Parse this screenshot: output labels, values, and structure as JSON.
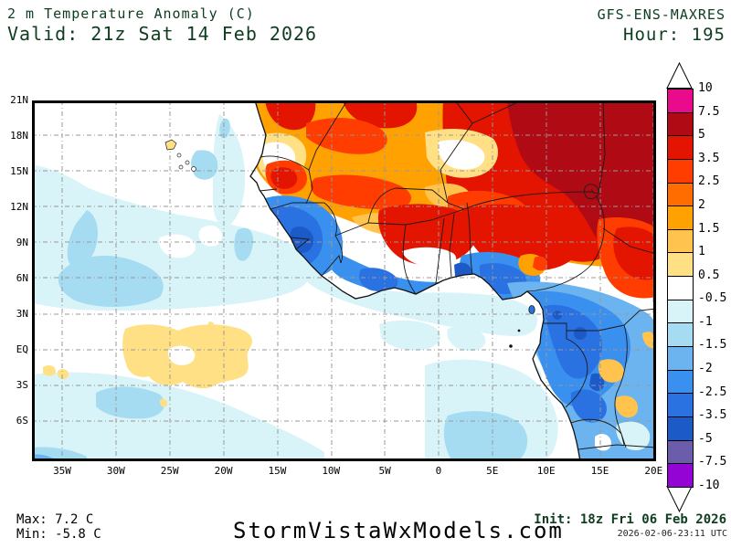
{
  "header": {
    "title": "2 m Temperature Anomaly (C)",
    "valid": "Valid: 21z Sat 14 Feb 2026",
    "model": "GFS-ENS-MAXRES",
    "hour": "Hour: 195"
  },
  "footer": {
    "max": "Max: 7.2 C",
    "min": "Min: -5.8 C",
    "site": "StormVistaWxModels.com",
    "init": "Init: 18z Fri 06 Feb 2026",
    "generated": "2026-02-06-23:11 UTC"
  },
  "map": {
    "lat_labels": [
      "21N",
      "18N",
      "15N",
      "12N",
      "9N",
      "6N",
      "3N",
      "EQ",
      "3S",
      "6S"
    ],
    "lon_labels": [
      "35W",
      "30W",
      "25W",
      "20W",
      "15W",
      "10W",
      "5W",
      "0",
      "5E",
      "10E",
      "15E",
      "20E"
    ]
  },
  "colorbar": {
    "unit": "C",
    "tick_labels": [
      "10",
      "7.5",
      "5",
      "3.5",
      "2.5",
      "2",
      "1.5",
      "1",
      "0.5",
      "-0.5",
      "-1",
      "-1.5",
      "-2",
      "-2.5",
      "-3.5",
      "-5",
      "-7.5",
      "-10"
    ],
    "cell_colors": [
      "#ea0a8c",
      "#b00a14",
      "#e31400",
      "#ff3d00",
      "#ff6d00",
      "#ffa100",
      "#ffc34e",
      "#ffe084",
      "#ffffff",
      "#d9f4f8",
      "#a5dcf2",
      "#6cb4f0",
      "#3a90ee",
      "#2a72e2",
      "#1c5ac8",
      "#6c5cac",
      "#9404d4"
    ]
  },
  "colors": {
    "header_text": "#0e3d20",
    "body_text": "#000000"
  }
}
